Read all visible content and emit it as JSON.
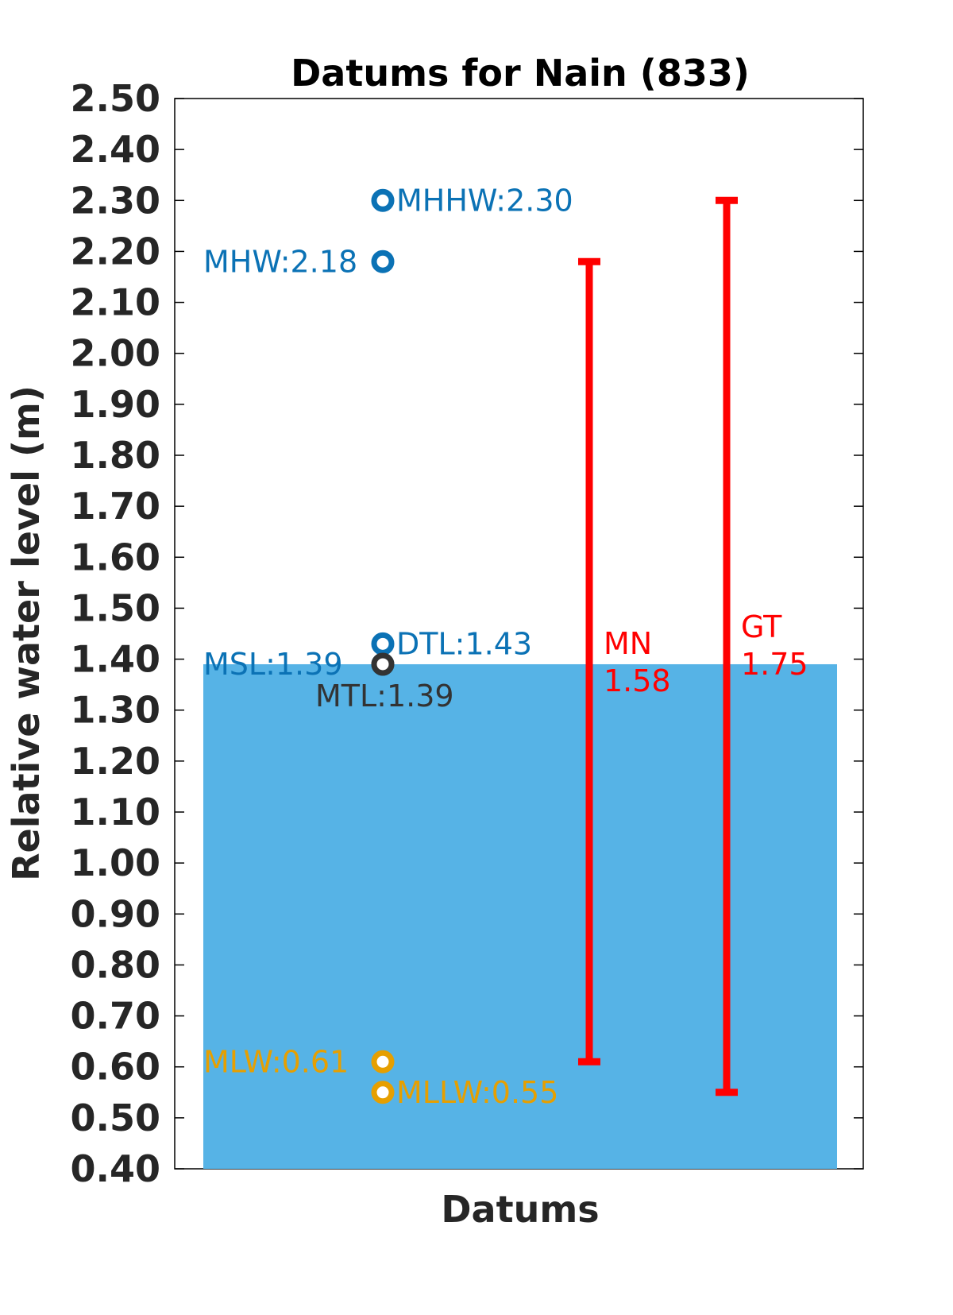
{
  "chart_data": {
    "type": "bar",
    "title": "Datums for Nain (833)",
    "xlabel": "Datums",
    "ylabel": "Relative water level (m)",
    "ylim": [
      0.4,
      2.5
    ],
    "yticks": [
      "0.40",
      "0.50",
      "0.60",
      "0.70",
      "0.80",
      "0.90",
      "1.00",
      "1.10",
      "1.20",
      "1.30",
      "1.40",
      "1.50",
      "1.60",
      "1.70",
      "1.80",
      "1.90",
      "2.00",
      "2.10",
      "2.20",
      "2.30",
      "2.40",
      "2.50"
    ],
    "grid": false,
    "bar": {
      "value": 1.39,
      "color": "#56b3e6"
    },
    "datums": [
      {
        "name": "MHHW",
        "value": 2.3,
        "label": "MHHW:2.30",
        "color": "#0b72b5",
        "side": "right"
      },
      {
        "name": "MHW",
        "value": 2.18,
        "label": "MHW:2.18",
        "color": "#0b72b5",
        "side": "left"
      },
      {
        "name": "DTL",
        "value": 1.43,
        "label": "DTL:1.43",
        "color": "#0b72b5",
        "side": "right"
      },
      {
        "name": "MSL",
        "value": 1.39,
        "label": "MSL:1.39",
        "color": "#0b72b5",
        "side": "left"
      },
      {
        "name": "MTL",
        "value": 1.39,
        "label": "MTL:1.39",
        "color": "#333333",
        "side": "below"
      },
      {
        "name": "MLW",
        "value": 0.61,
        "label": "MLW:0.61",
        "color": "#e69f00",
        "side": "left"
      },
      {
        "name": "MLLW",
        "value": 0.55,
        "label": "MLLW:0.55",
        "color": "#e69f00",
        "side": "right"
      }
    ],
    "ranges": [
      {
        "name": "MN",
        "label_name": "MN",
        "label_value": "1.58",
        "low": 0.61,
        "high": 2.18,
        "color": "#ff0000"
      },
      {
        "name": "GT",
        "label_name": "GT",
        "label_value": "1.75",
        "low": 0.55,
        "high": 2.3,
        "color": "#ff0000"
      }
    ]
  }
}
